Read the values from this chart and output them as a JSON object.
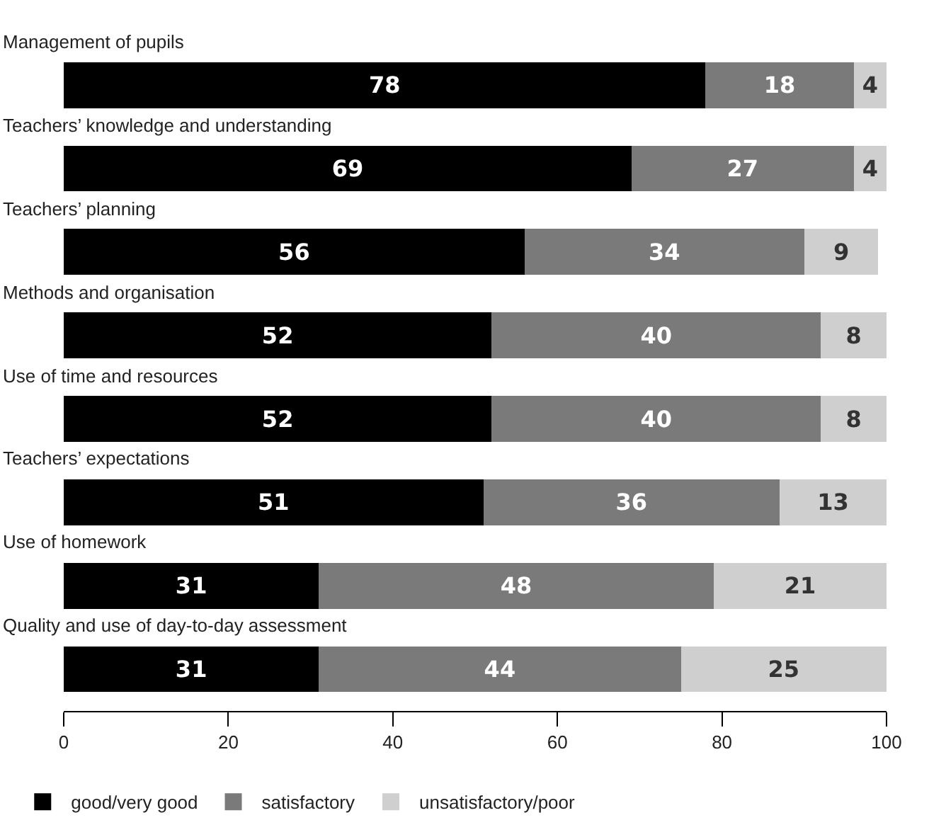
{
  "chart_data": {
    "type": "bar",
    "orientation": "horizontal",
    "stacked": true,
    "categories": [
      "Management of pupils",
      "Teachers’ knowledge and understanding",
      "Teachers’ planning",
      "Methods and organisation",
      "Use of time and resources",
      "Teachers’ expectations",
      "Use of homework",
      "Quality and use of day-to-day assessment"
    ],
    "series": [
      {
        "name": "good/very good",
        "color": "#000000",
        "values": [
          78,
          69,
          56,
          52,
          52,
          51,
          31,
          31
        ]
      },
      {
        "name": "satisfactory",
        "color": "#7a7a7a",
        "values": [
          18,
          27,
          34,
          40,
          40,
          36,
          48,
          44
        ]
      },
      {
        "name": "unsatisfactory/poor",
        "color": "#cfcfcf",
        "values": [
          4,
          4,
          9,
          8,
          8,
          13,
          21,
          25
        ]
      }
    ],
    "xlim": [
      0,
      100
    ],
    "xticks": [
      0,
      20,
      40,
      60,
      80,
      100
    ],
    "data_labels": true,
    "grid": false,
    "legend": "bottom left",
    "tick_labels": "x"
  }
}
